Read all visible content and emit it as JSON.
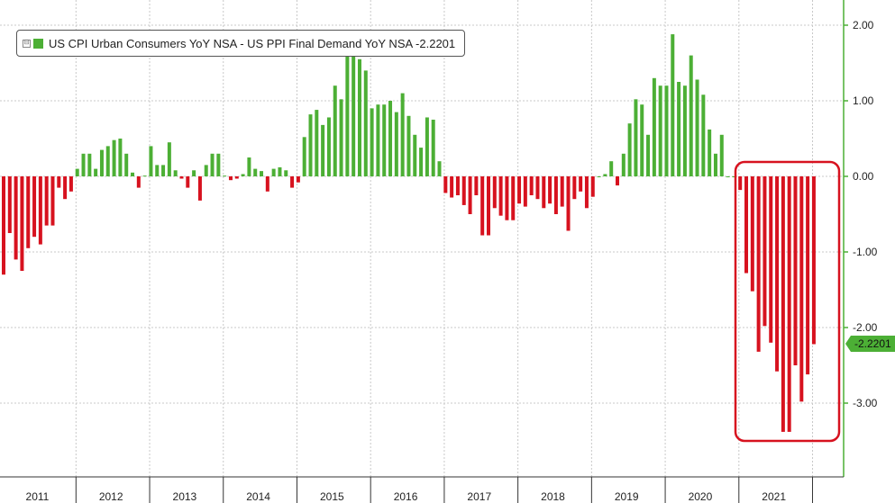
{
  "colors": {
    "positive": "#4caf35",
    "negative": "#d7121f",
    "grid": "#c8c8c8",
    "axis": "#4caf35",
    "highlight": "#d7121f",
    "background": "#ffffff"
  },
  "legend": {
    "toggle": "⊟",
    "label": "US CPI Urban Consumers YoY NSA - US PPI Final Demand YoY NSA -2.2201"
  },
  "last_value": {
    "label": "-2.2201",
    "value": -2.2201
  },
  "chart_data": {
    "type": "bar",
    "title": "",
    "xlabel": "",
    "ylabel": "",
    "ylim": [
      -3.9,
      2.3
    ],
    "yticks": [
      2.0,
      1.0,
      0.0,
      -1.0,
      -2.0,
      -3.0
    ],
    "ytick_labels": [
      "2.00",
      "1.00",
      "0.00",
      "-1.00",
      "-2.00",
      "-3.00"
    ],
    "x_range": [
      "2011-01",
      "2021-12"
    ],
    "year_labels": [
      "2011",
      "2012",
      "2013",
      "2014",
      "2015",
      "2016",
      "2017",
      "2018",
      "2019",
      "2020",
      "2021"
    ],
    "grid": true,
    "legend_position": "top-left",
    "highlight_range": [
      "2021-01",
      "2021-10"
    ],
    "series": [
      {
        "name": "US CPI Urban Consumers YoY NSA - US PPI Final Demand YoY NSA",
        "start": "2011-01",
        "frequency": "monthly",
        "values": [
          -1.3,
          -0.75,
          -1.1,
          -1.25,
          -0.95,
          -0.8,
          -0.9,
          -0.65,
          -0.65,
          -0.15,
          -0.3,
          -0.2,
          0.1,
          0.3,
          0.3,
          0.1,
          0.35,
          0.4,
          0.48,
          0.5,
          0.3,
          0.05,
          -0.15,
          0.01,
          0.4,
          0.15,
          0.15,
          0.45,
          0.08,
          -0.03,
          -0.15,
          0.08,
          -0.32,
          0.15,
          0.3,
          0.3,
          0.01,
          -0.05,
          -0.03,
          0.03,
          0.25,
          0.1,
          0.07,
          -0.2,
          0.1,
          0.12,
          0.08,
          -0.15,
          -0.08,
          0.52,
          0.82,
          0.88,
          0.68,
          0.78,
          1.2,
          1.02,
          1.62,
          1.62,
          1.55,
          1.4,
          0.9,
          0.95,
          0.95,
          1.0,
          0.85,
          1.1,
          0.8,
          0.55,
          0.38,
          0.78,
          0.75,
          0.2,
          -0.22,
          -0.28,
          -0.25,
          -0.38,
          -0.5,
          -0.25,
          -0.78,
          -0.78,
          -0.42,
          -0.52,
          -0.58,
          -0.58,
          -0.36,
          -0.4,
          -0.25,
          -0.3,
          -0.42,
          -0.36,
          -0.5,
          -0.4,
          -0.72,
          -0.3,
          -0.2,
          -0.42,
          -0.27,
          0.0,
          0.03,
          0.2,
          -0.12,
          0.3,
          0.7,
          1.02,
          0.95,
          0.55,
          1.3,
          1.2,
          1.2,
          1.88,
          1.25,
          1.2,
          1.6,
          1.28,
          1.08,
          0.62,
          0.3,
          0.55,
          0.0,
          0.0,
          -0.18,
          -1.28,
          -1.52,
          -2.32,
          -1.98,
          -2.2,
          -2.58,
          -3.38,
          -3.38,
          -2.5,
          -2.98,
          -2.62,
          -2.2201
        ]
      }
    ]
  }
}
